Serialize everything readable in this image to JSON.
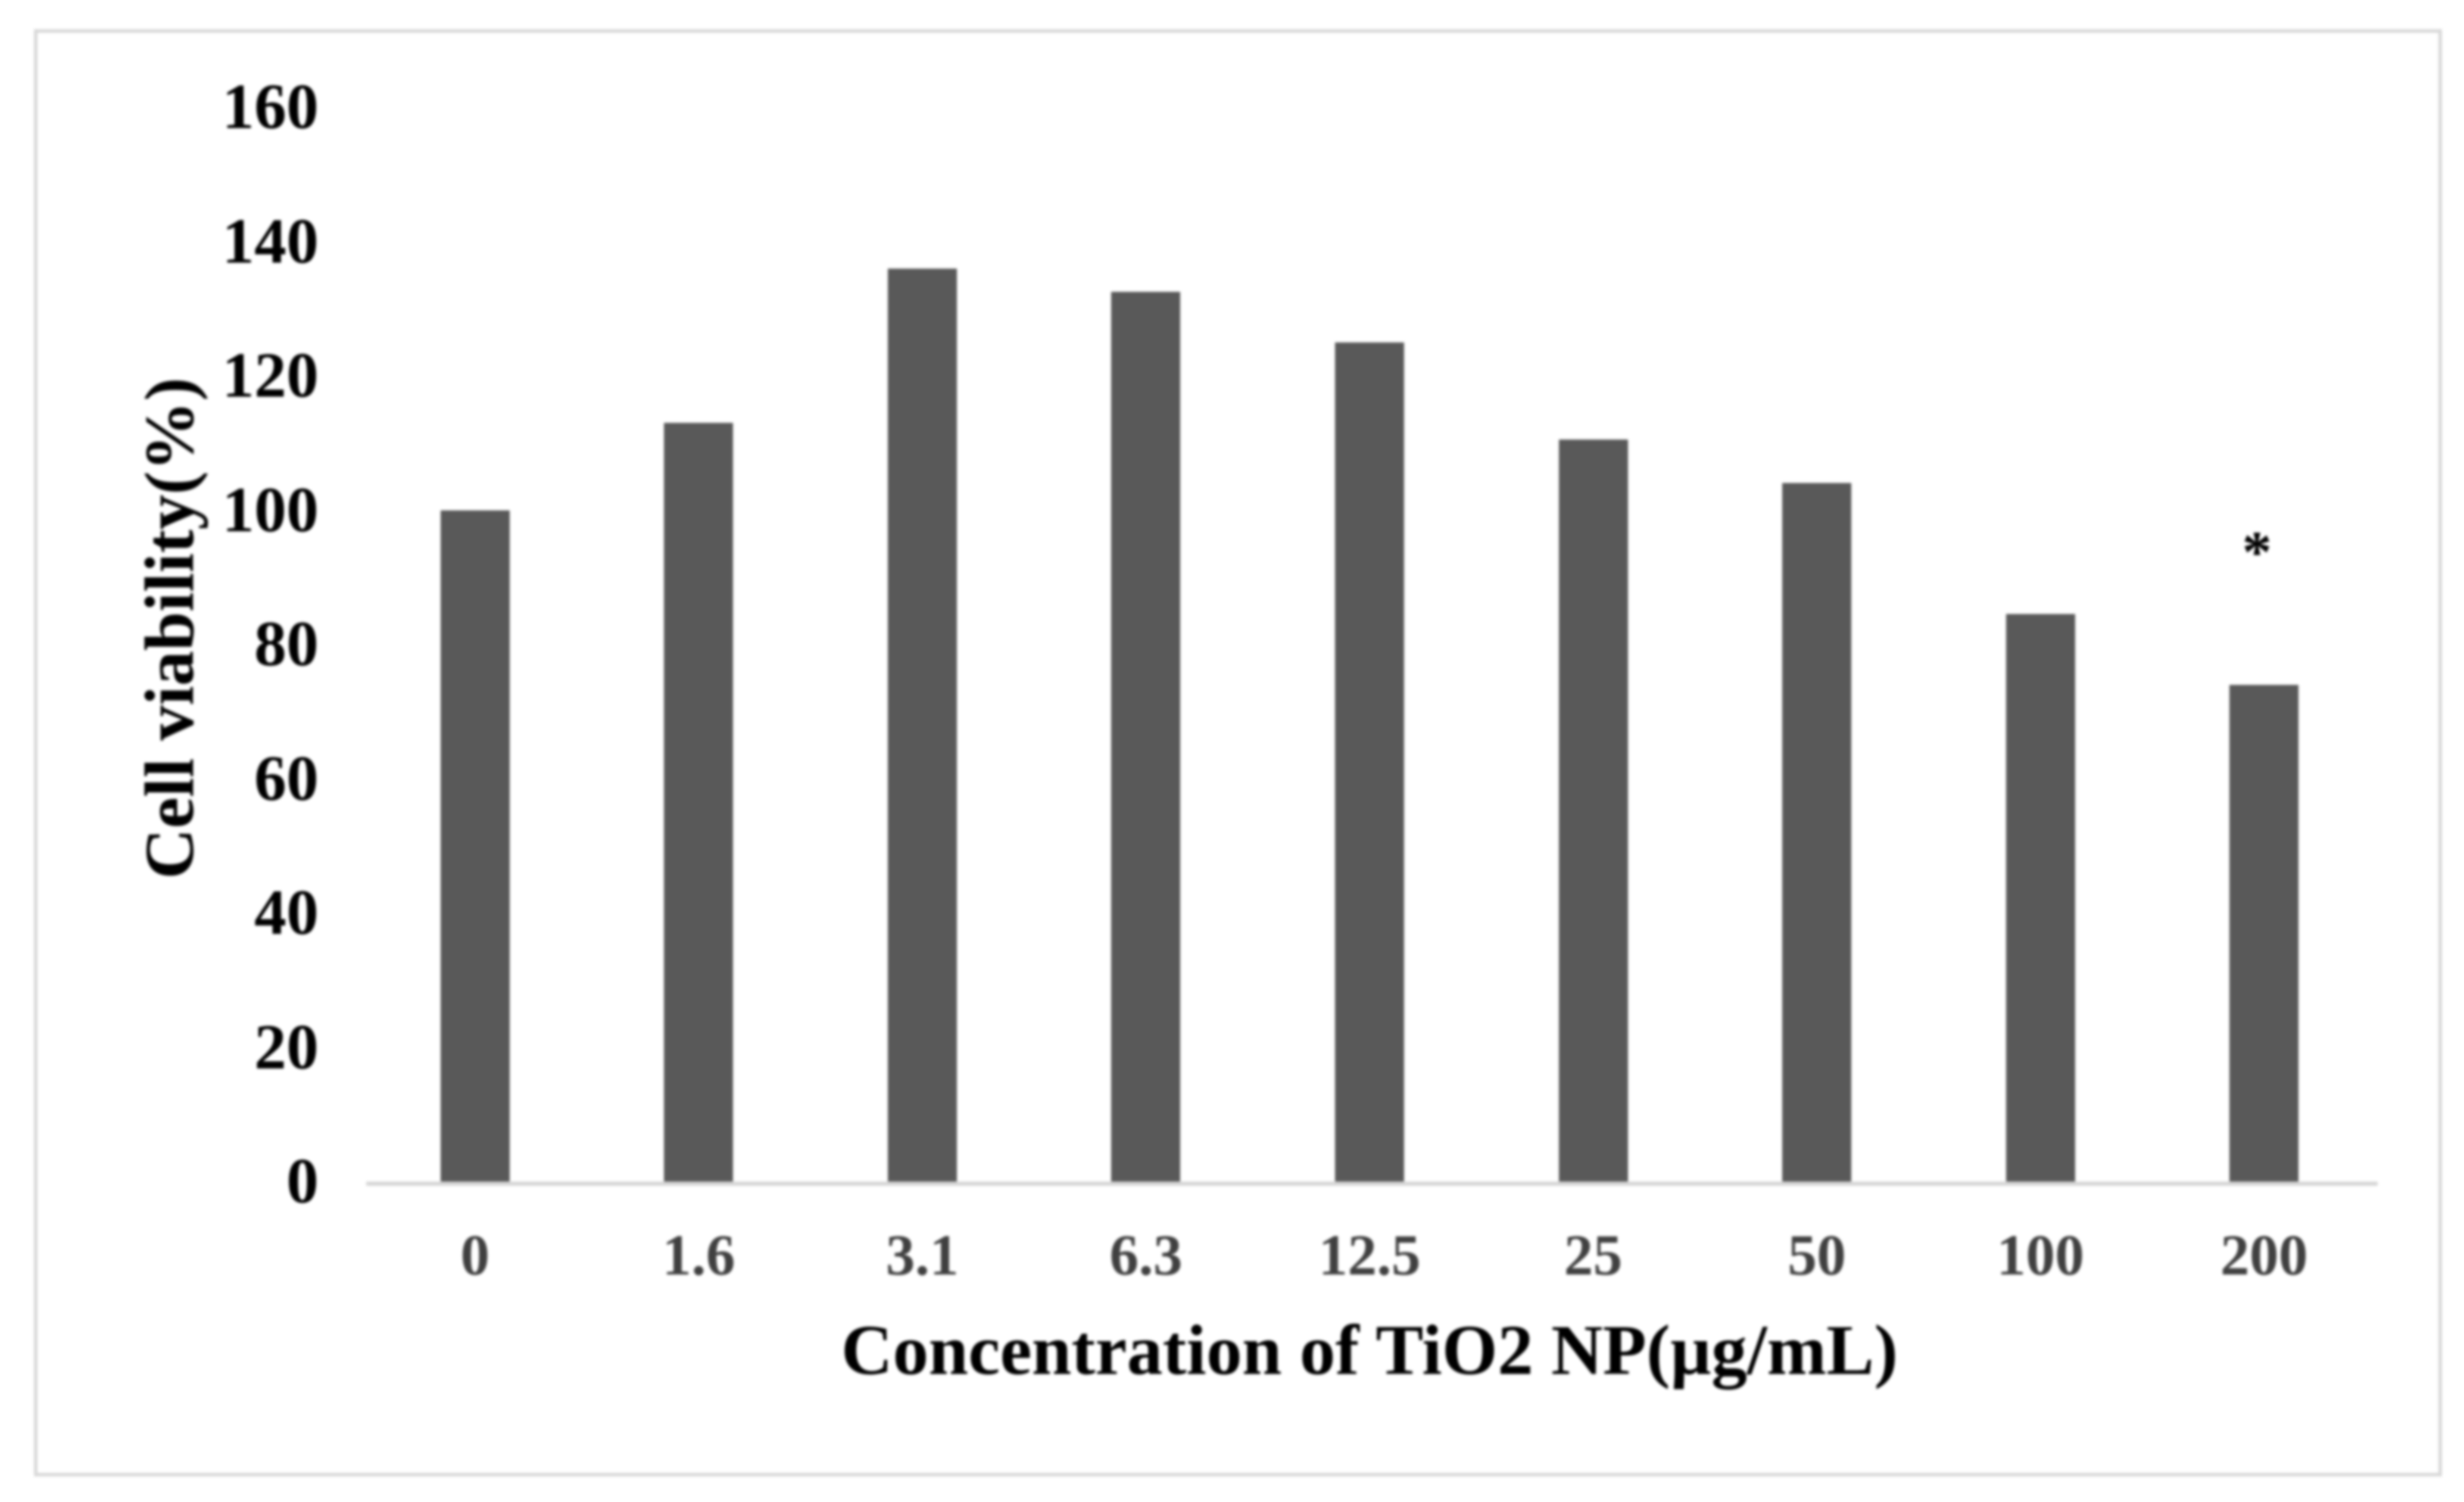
{
  "figure": {
    "background": "#ffffff",
    "border_color": "#d9d9d9"
  },
  "chart_data": {
    "type": "bar",
    "title": "",
    "xlabel": "Concentration of TiO2 NP(µg/mL)",
    "ylabel": "Cell viability(%)",
    "categories": [
      "0",
      "1.6",
      "3.1",
      "6.3",
      "12.5",
      "25",
      "50",
      "100",
      "200"
    ],
    "values": [
      100,
      113,
      136,
      132.5,
      125,
      110.5,
      104,
      84.5,
      74
    ],
    "ylim": [
      0,
      160
    ],
    "yticks": [
      0,
      20,
      40,
      60,
      80,
      100,
      120,
      140,
      160
    ],
    "grid": false,
    "legend": "none",
    "bar_color": "#595959",
    "axis_line_color": "#d6d6d6",
    "tick_label_color": "#000000",
    "category_label_color": "#404040",
    "annotation": {
      "text": "*",
      "category": "200",
      "category_index": 8,
      "y_value": 94.5
    }
  }
}
